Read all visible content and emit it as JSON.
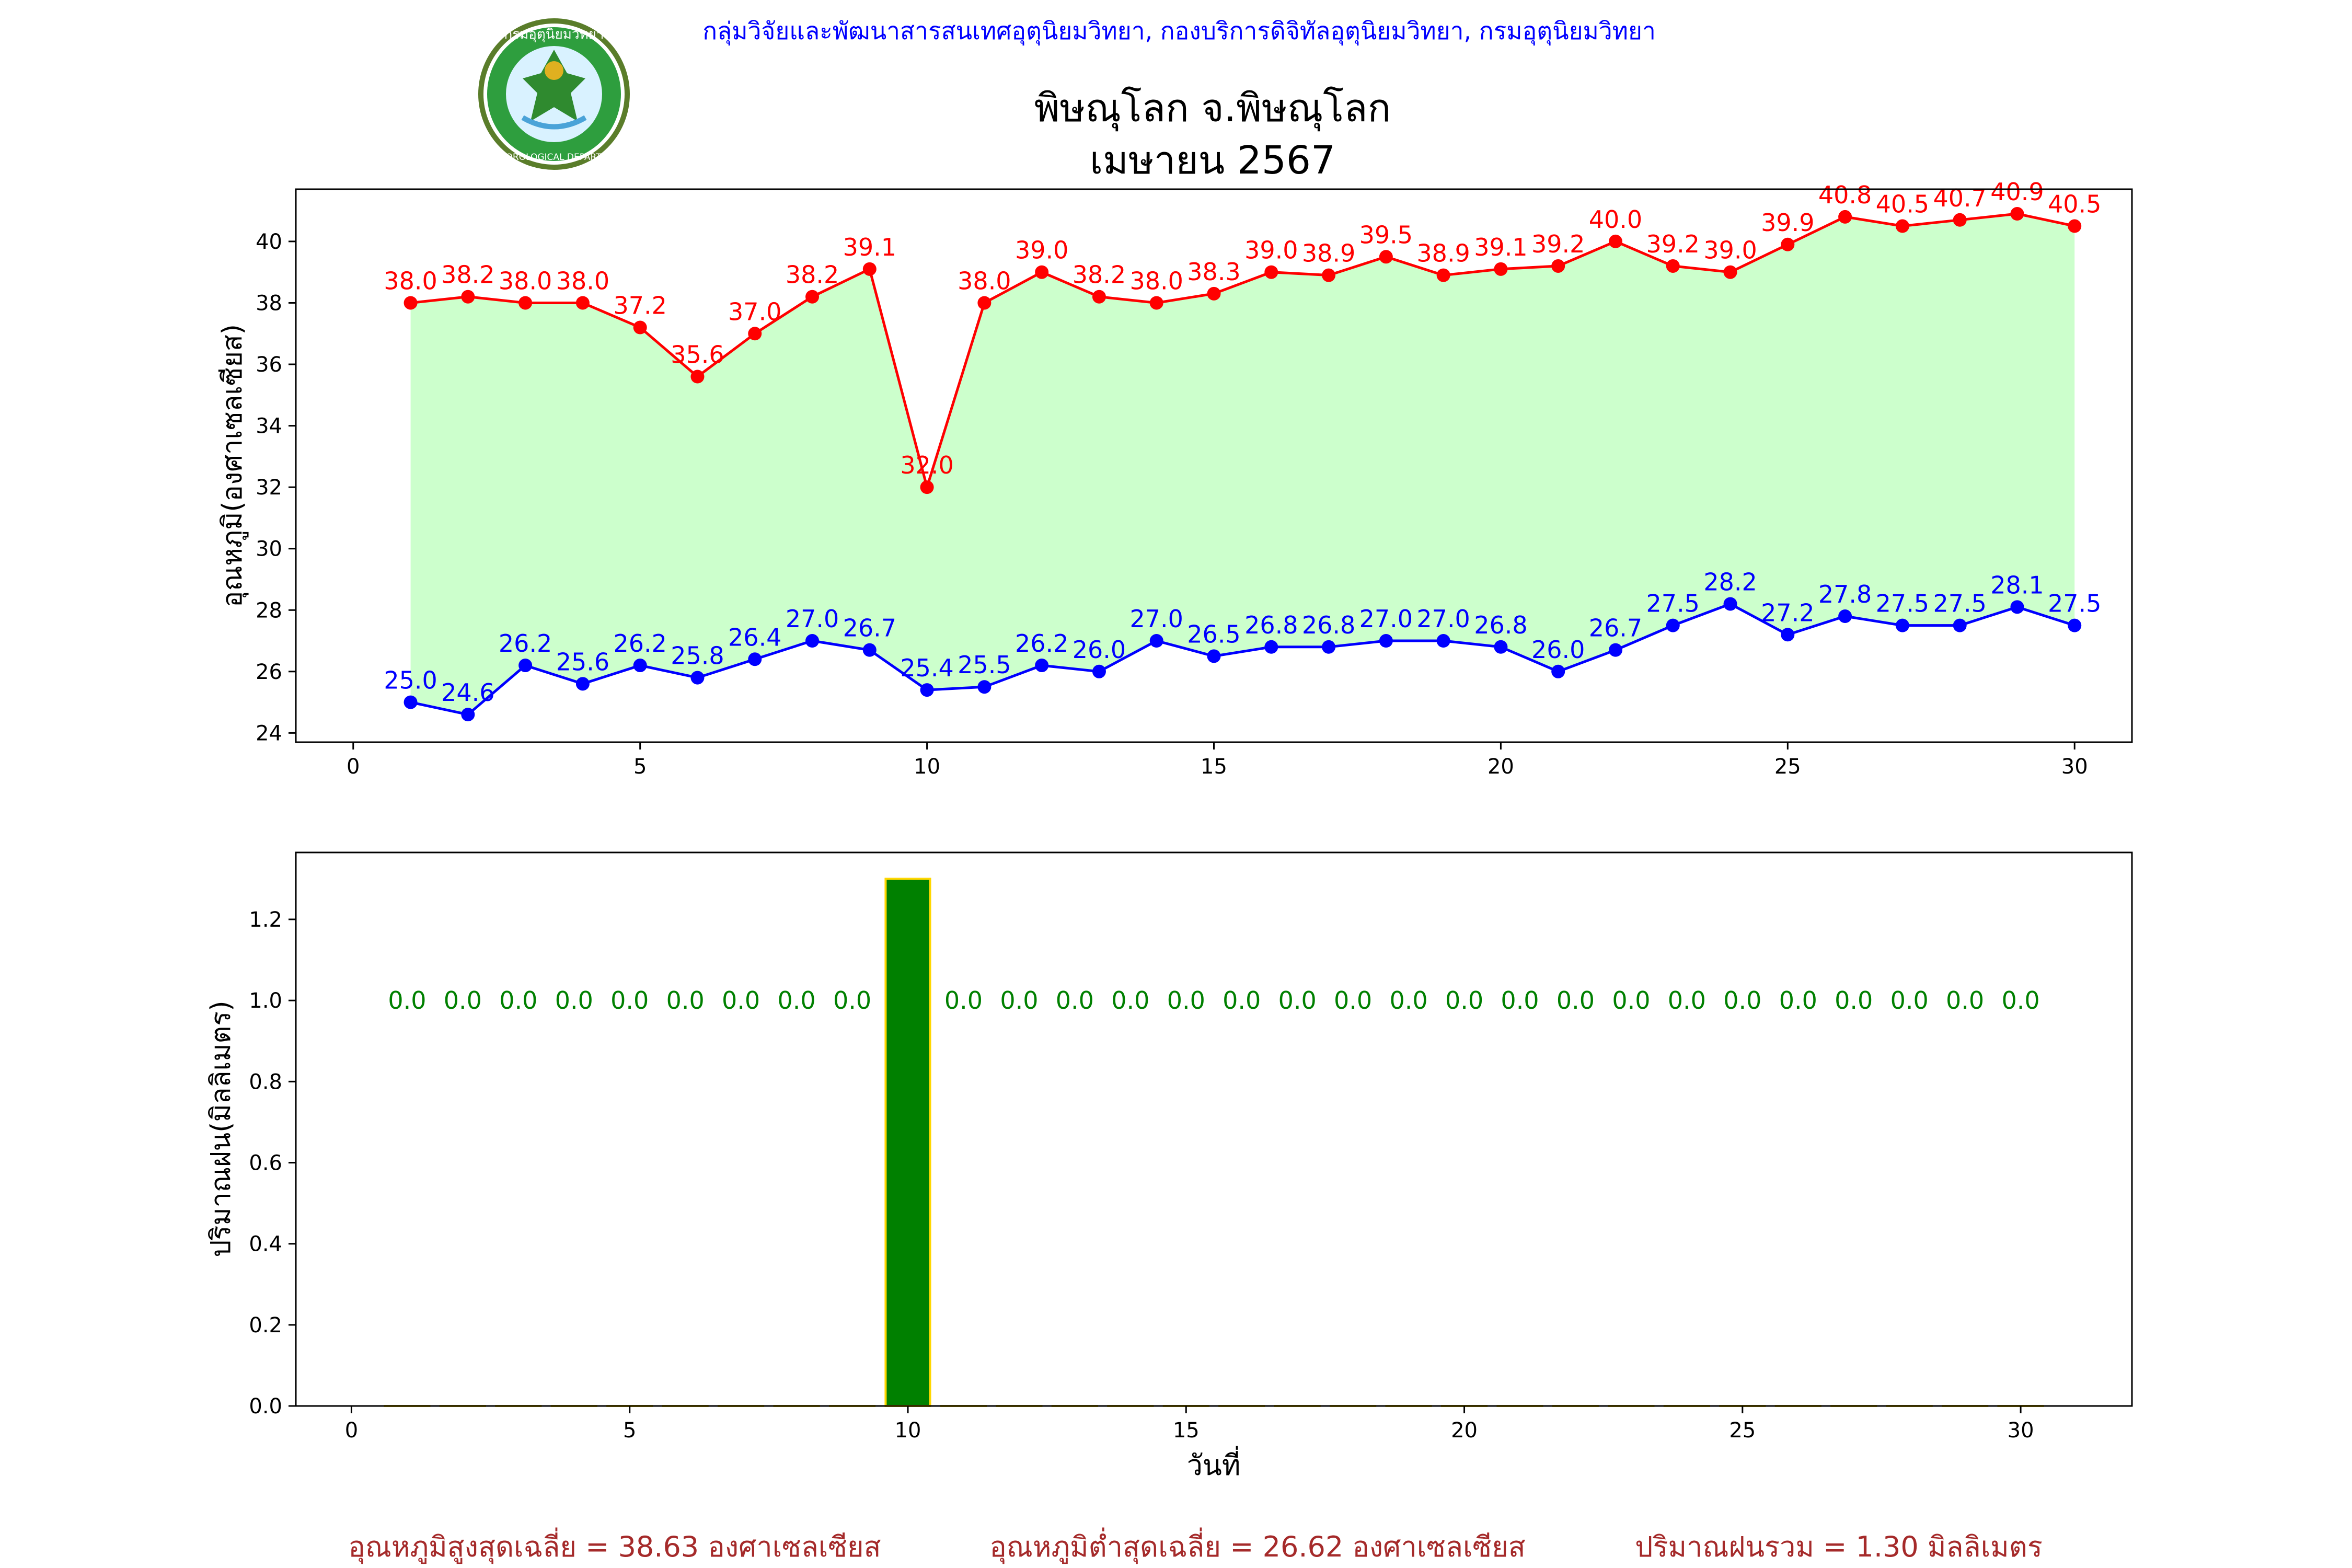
{
  "header": {
    "agency": "กลุ่มวิจัยและพัฒนาสารสนเทศอุตุนิยมวิทยา, กองบริการดิจิทัลอุตุนิยมวิทยา, กรมอุตุนิยมวิทยา",
    "logo_text_top": "กรมอุตุนิยมวิทยา",
    "logo_text_bottom": "METEOROLOGICAL DEPARTMENT"
  },
  "title_line1": "พิษณุโลก จ.พิษณุโลก",
  "title_line2": "เมษายน 2567",
  "colors": {
    "max": "#ff0000",
    "min": "#0000ff",
    "fill": "#ccffcc",
    "rain": "#008000",
    "rain_edge": "#ffd700",
    "header": "#0000ff",
    "summary": "#a52a2a"
  },
  "chart_data": [
    {
      "type": "line",
      "ylabel": "อุณหภูมิ(องศาเซลเซียส)",
      "xlim": [
        -1,
        31
      ],
      "ylim": [
        23.7,
        41.7
      ],
      "xticks": [
        0,
        5,
        10,
        15,
        20,
        25,
        30
      ],
      "yticks": [
        24,
        26,
        28,
        30,
        32,
        34,
        36,
        38,
        40
      ],
      "x": [
        1,
        2,
        3,
        4,
        5,
        6,
        7,
        8,
        9,
        10,
        11,
        12,
        13,
        14,
        15,
        16,
        17,
        18,
        19,
        20,
        21,
        22,
        23,
        24,
        25,
        26,
        27,
        28,
        29,
        30
      ],
      "series": [
        {
          "key": "max",
          "values": [
            38.0,
            38.2,
            38.0,
            38.0,
            37.2,
            35.6,
            37.0,
            38.2,
            39.1,
            32.0,
            38.0,
            39.0,
            38.2,
            38.0,
            38.3,
            39.0,
            38.9,
            39.5,
            38.9,
            39.1,
            39.2,
            40.0,
            39.2,
            39.0,
            39.9,
            40.8,
            40.5,
            40.7,
            40.9,
            40.5
          ]
        },
        {
          "key": "min",
          "values": [
            25.0,
            24.6,
            26.2,
            25.6,
            26.2,
            25.8,
            26.4,
            27.0,
            26.7,
            25.4,
            25.5,
            26.2,
            26.0,
            27.0,
            26.5,
            26.8,
            26.8,
            27.0,
            27.0,
            26.8,
            26.0,
            26.7,
            27.5,
            28.2,
            27.2,
            27.8,
            27.5,
            27.5,
            28.1,
            27.5
          ]
        }
      ],
      "grid": false
    },
    {
      "type": "bar",
      "xlabel": "วันที่",
      "ylabel": "ปริมาณฝน(มิลลิเมตร)",
      "xlim": [
        -1,
        32
      ],
      "ylim": [
        0,
        1.365
      ],
      "xticks": [
        0,
        5,
        10,
        15,
        20,
        25,
        30
      ],
      "yticks": [
        0.0,
        0.2,
        0.4,
        0.6,
        0.8,
        1.0,
        1.2
      ],
      "x": [
        1,
        2,
        3,
        4,
        5,
        6,
        7,
        8,
        9,
        10,
        11,
        12,
        13,
        14,
        15,
        16,
        17,
        18,
        19,
        20,
        21,
        22,
        23,
        24,
        25,
        26,
        27,
        28,
        29,
        30
      ],
      "values": [
        0.0,
        0.0,
        0.0,
        0.0,
        0.0,
        0.0,
        0.0,
        0.0,
        0.0,
        1.3,
        0.0,
        0.0,
        0.0,
        0.0,
        0.0,
        0.0,
        0.0,
        0.0,
        0.0,
        0.0,
        0.0,
        0.0,
        0.0,
        0.0,
        0.0,
        0.0,
        0.0,
        0.0,
        0.0,
        0.0
      ],
      "label_y": 1.0,
      "grid": false
    }
  ],
  "summary": {
    "max_avg": "อุณหภูมิสูงสุดเฉลี่ย = 38.63 องศาเซลเซียส",
    "min_avg": "อุณหภูมิต่ำสุดเฉลี่ย = 26.62 องศาเซลเซียส",
    "rain_total": "ปริมาณฝนรวม = 1.30 มิลลิเมตร"
  }
}
